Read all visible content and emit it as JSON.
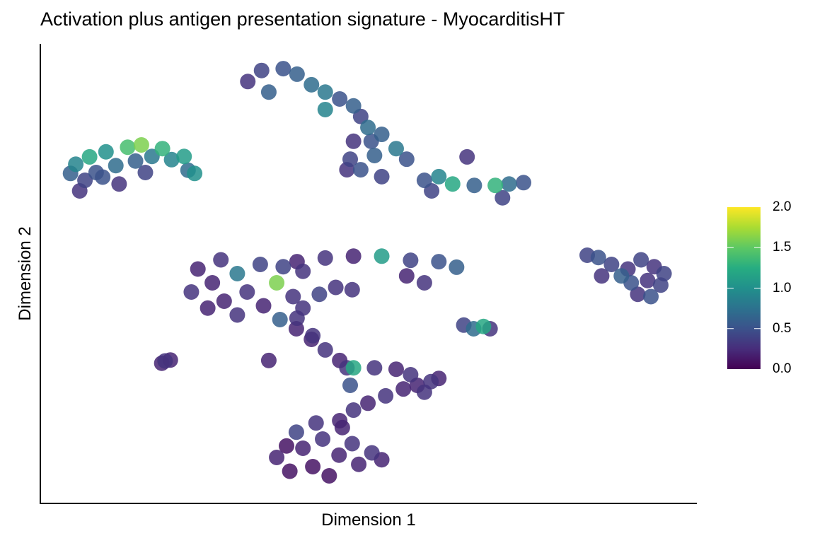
{
  "chart_data": {
    "type": "scatter",
    "title": "Activation plus antigen presentation signature - MyocarditisHT",
    "xlabel": "Dimension 1",
    "ylabel": "Dimension 2",
    "xlim": [
      0,
      100
    ],
    "ylim": [
      0,
      100
    ],
    "grid": false,
    "colormap": "viridis",
    "color_range": [
      0,
      2
    ],
    "colorbar": {
      "position": "right",
      "ticks": [
        "0.0",
        "0.5",
        "1.0",
        "1.5",
        "2.0"
      ],
      "tick_values": [
        0,
        0.5,
        1.0,
        1.5,
        2.0
      ]
    },
    "colors": {
      "low": "#440154",
      "mid": "#21908C",
      "high": "#FDE725",
      "axis": "#000000"
    },
    "points": [
      [
        4.6,
        71.8,
        0.6
      ],
      [
        5.4,
        73.8,
        0.9
      ],
      [
        6.8,
        70.3,
        0.4
      ],
      [
        7.5,
        75.4,
        1.2
      ],
      [
        8.5,
        72.0,
        0.5
      ],
      [
        10.0,
        76.5,
        1.0
      ],
      [
        11.5,
        73.5,
        0.7
      ],
      [
        13.3,
        77.5,
        1.4
      ],
      [
        14.5,
        74.5,
        0.6
      ],
      [
        15.4,
        78.0,
        1.6
      ],
      [
        17.0,
        75.5,
        0.8
      ],
      [
        18.6,
        77.2,
        1.3
      ],
      [
        20.0,
        74.8,
        0.9
      ],
      [
        21.9,
        75.5,
        1.1
      ],
      [
        22.5,
        72.5,
        0.7
      ],
      [
        23.5,
        71.8,
        1.0
      ],
      [
        12.0,
        69.5,
        0.3
      ],
      [
        9.5,
        71.0,
        0.5
      ],
      [
        6.0,
        68.0,
        0.3
      ],
      [
        16.0,
        72.0,
        0.4
      ],
      [
        31.6,
        91.8,
        0.3
      ],
      [
        33.7,
        94.2,
        0.4
      ],
      [
        37.0,
        94.6,
        0.5
      ],
      [
        39.1,
        93.4,
        0.6
      ],
      [
        41.3,
        91.1,
        0.7
      ],
      [
        43.4,
        89.5,
        0.8
      ],
      [
        45.6,
        88.0,
        0.5
      ],
      [
        47.7,
        86.5,
        0.6
      ],
      [
        48.8,
        84.2,
        0.4
      ],
      [
        49.9,
        81.8,
        0.7
      ],
      [
        52.0,
        80.3,
        0.6
      ],
      [
        54.2,
        77.2,
        0.8
      ],
      [
        55.8,
        74.9,
        0.5
      ],
      [
        47.7,
        78.8,
        0.3
      ],
      [
        47.2,
        74.9,
        0.4
      ],
      [
        46.7,
        72.6,
        0.3
      ],
      [
        48.8,
        72.6,
        0.5
      ],
      [
        50.9,
        75.7,
        0.6
      ],
      [
        52.0,
        71.1,
        0.4
      ],
      [
        58.5,
        70.3,
        0.5
      ],
      [
        59.6,
        68.0,
        0.4
      ],
      [
        60.7,
        71.1,
        0.9
      ],
      [
        62.8,
        69.5,
        1.2
      ],
      [
        66.1,
        69.2,
        0.6
      ],
      [
        69.3,
        69.2,
        1.3
      ],
      [
        71.4,
        69.5,
        0.7
      ],
      [
        73.6,
        69.8,
        0.5
      ],
      [
        65.0,
        75.4,
        0.3
      ],
      [
        70.4,
        66.5,
        0.4
      ],
      [
        34.8,
        89.5,
        0.6
      ],
      [
        43.4,
        85.7,
        0.9
      ],
      [
        50.4,
        78.8,
        0.5
      ],
      [
        26.2,
        48.0,
        0.2
      ],
      [
        24.0,
        51.0,
        0.2
      ],
      [
        23.0,
        46.0,
        0.3
      ],
      [
        27.5,
        53.0,
        0.3
      ],
      [
        30.0,
        50.0,
        0.8
      ],
      [
        28.0,
        44.0,
        0.2
      ],
      [
        31.5,
        46.0,
        0.3
      ],
      [
        33.5,
        52.0,
        0.4
      ],
      [
        25.5,
        42.5,
        0.2
      ],
      [
        30.0,
        41.0,
        0.3
      ],
      [
        34.0,
        43.0,
        0.2
      ],
      [
        36.0,
        48.0,
        1.6
      ],
      [
        38.5,
        45.0,
        0.3
      ],
      [
        36.5,
        40.0,
        0.6
      ],
      [
        40.0,
        42.5,
        0.3
      ],
      [
        42.5,
        45.5,
        0.4
      ],
      [
        45.0,
        47.0,
        0.3
      ],
      [
        47.5,
        46.5,
        0.3
      ],
      [
        39.0,
        38.0,
        0.2
      ],
      [
        41.5,
        36.5,
        0.3
      ],
      [
        37.0,
        51.5,
        0.4
      ],
      [
        40.0,
        50.5,
        0.3
      ],
      [
        39.1,
        52.6,
        0.2
      ],
      [
        43.4,
        53.4,
        0.3
      ],
      [
        47.7,
        53.8,
        0.2
      ],
      [
        52.0,
        53.8,
        1.1
      ],
      [
        56.4,
        52.9,
        0.4
      ],
      [
        60.7,
        52.6,
        0.5
      ],
      [
        63.4,
        51.4,
        0.6
      ],
      [
        58.5,
        48.0,
        0.3
      ],
      [
        55.8,
        49.5,
        0.2
      ],
      [
        34.8,
        31.1,
        0.2
      ],
      [
        89.5,
        51.0,
        0.3
      ],
      [
        91.5,
        53.0,
        0.4
      ],
      [
        93.5,
        51.5,
        0.3
      ],
      [
        95.0,
        50.0,
        0.4
      ],
      [
        90.0,
        48.0,
        0.5
      ],
      [
        92.5,
        48.5,
        0.3
      ],
      [
        94.5,
        47.5,
        0.4
      ],
      [
        91.0,
        45.5,
        0.3
      ],
      [
        93.0,
        45.0,
        0.5
      ],
      [
        88.5,
        49.5,
        0.6
      ],
      [
        83.3,
        54.0,
        0.4
      ],
      [
        85.0,
        53.5,
        0.5
      ],
      [
        85.5,
        49.5,
        0.3
      ],
      [
        87.0,
        52.0,
        0.4
      ],
      [
        64.5,
        38.8,
        0.4
      ],
      [
        66.0,
        38.0,
        0.7
      ],
      [
        67.5,
        38.5,
        1.2
      ],
      [
        68.5,
        38.0,
        0.3
      ],
      [
        18.5,
        30.5,
        0.2
      ],
      [
        19.0,
        31.0,
        0.3
      ],
      [
        19.8,
        31.2,
        0.2
      ],
      [
        39.1,
        40.3,
        0.3
      ],
      [
        41.3,
        35.7,
        0.2
      ],
      [
        43.4,
        33.4,
        0.3
      ],
      [
        45.6,
        31.1,
        0.2
      ],
      [
        47.7,
        29.5,
        1.2
      ],
      [
        50.9,
        29.5,
        0.3
      ],
      [
        54.2,
        29.2,
        0.2
      ],
      [
        56.4,
        28.0,
        0.3
      ],
      [
        57.4,
        25.7,
        0.2
      ],
      [
        59.5,
        26.5,
        0.3
      ],
      [
        60.7,
        27.2,
        0.2
      ],
      [
        58.5,
        24.2,
        0.3
      ],
      [
        55.3,
        24.9,
        0.2
      ],
      [
        52.6,
        23.4,
        0.3
      ],
      [
        49.9,
        21.8,
        0.2
      ],
      [
        47.7,
        20.3,
        0.3
      ],
      [
        45.6,
        18.0,
        0.2
      ],
      [
        47.2,
        25.7,
        0.5
      ],
      [
        46.7,
        29.5,
        0.3
      ],
      [
        36.0,
        10.0,
        0.2
      ],
      [
        38.0,
        7.0,
        0.1
      ],
      [
        40.0,
        12.0,
        0.2
      ],
      [
        41.5,
        8.0,
        0.1
      ],
      [
        43.0,
        14.0,
        0.3
      ],
      [
        44.0,
        6.0,
        0.1
      ],
      [
        45.5,
        10.5,
        0.2
      ],
      [
        47.5,
        13.0,
        0.3
      ],
      [
        48.5,
        8.5,
        0.2
      ],
      [
        50.5,
        11.0,
        0.3
      ],
      [
        52.0,
        9.5,
        0.2
      ],
      [
        39.0,
        15.5,
        0.4
      ],
      [
        42.0,
        17.5,
        0.3
      ],
      [
        46.0,
        16.5,
        0.2
      ],
      [
        37.5,
        12.5,
        0.1
      ]
    ]
  }
}
